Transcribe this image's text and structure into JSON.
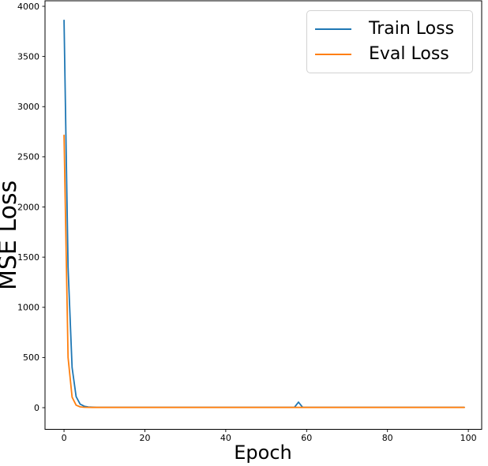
{
  "chart_data": {
    "type": "line",
    "title": "",
    "xlabel": "Epoch",
    "ylabel": "MSE Loss",
    "xlim": [
      -4.7,
      103.3
    ],
    "ylim": [
      -216,
      4055
    ],
    "xticks": [
      0,
      20,
      40,
      60,
      80,
      100
    ],
    "yticks": [
      0,
      500,
      1000,
      1500,
      2000,
      2500,
      3000,
      3500,
      4000
    ],
    "grid": false,
    "background": "#ffffff",
    "axis_color": "#000000",
    "legend_position": "upper right",
    "series": [
      {
        "name": "Train Loss",
        "color": "#1f77b4",
        "points": [
          [
            0,
            3860
          ],
          [
            1,
            1400
          ],
          [
            2,
            400
          ],
          [
            3,
            110
          ],
          [
            4,
            35
          ],
          [
            5,
            14
          ],
          [
            6,
            7
          ],
          [
            7,
            4.5
          ],
          [
            8,
            3.6
          ],
          [
            9,
            3.2
          ],
          [
            10,
            3.1
          ],
          [
            12,
            3
          ],
          [
            57,
            3
          ],
          [
            58,
            55
          ],
          [
            59,
            3
          ],
          [
            99,
            3
          ]
        ]
      },
      {
        "name": "Eval Loss",
        "color": "#ff7f0e",
        "points": [
          [
            0,
            2715
          ],
          [
            1,
            500
          ],
          [
            2,
            105
          ],
          [
            3,
            25
          ],
          [
            4,
            8
          ],
          [
            5,
            4
          ],
          [
            6,
            3
          ],
          [
            7,
            2.7
          ],
          [
            8,
            2.6
          ],
          [
            10,
            2.5
          ],
          [
            99,
            2.5
          ]
        ]
      }
    ]
  }
}
